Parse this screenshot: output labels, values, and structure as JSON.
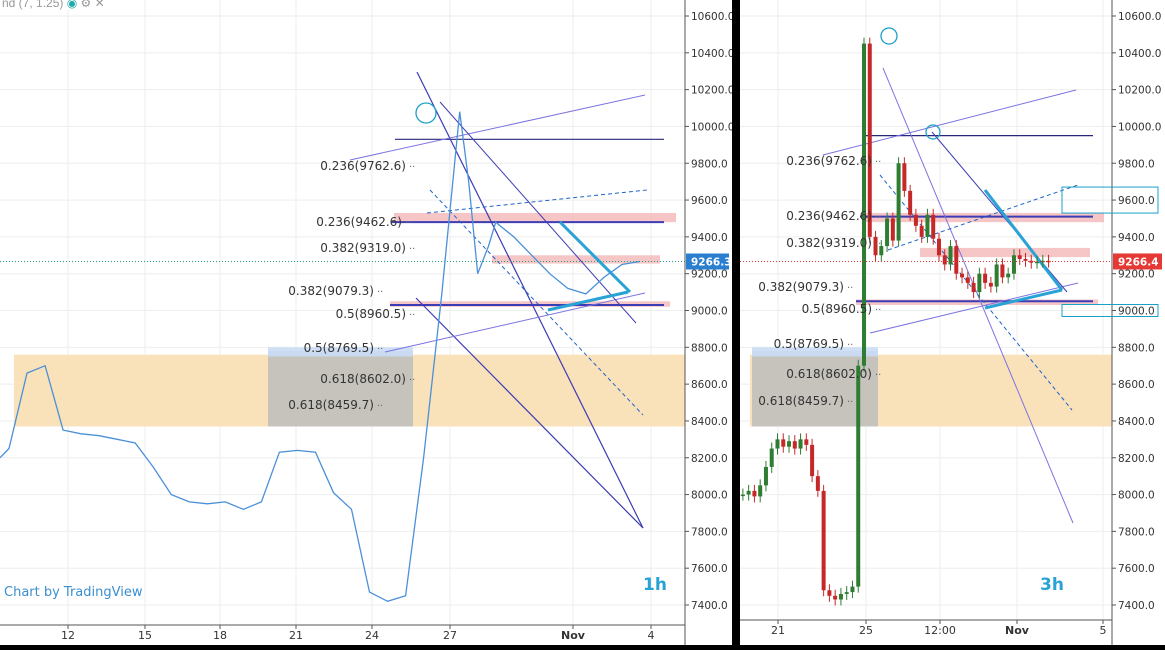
{
  "colors": {
    "line_series": "#4a90d9",
    "candle_up": "#2e7d32",
    "candle_down": "#c62828",
    "zone_orange": "#f9dfb6",
    "zone_pink": "#f4b6b8",
    "zone_gray": "#bdbdbd",
    "zone_blue": "#c9dcf5",
    "channel": "#3c3cb4",
    "channel_light": "#7b74e0",
    "dashed": "#1e64c8",
    "triangle": "#29a3d6",
    "price_badge_left": "#2a7fd0",
    "price_badge_right": "#e53935",
    "timeframe_label": "#29a3d6"
  },
  "legend": {
    "text": "nd (7, 1.25)",
    "icons": [
      "eye-icon",
      "gear-icon",
      "close-icon"
    ]
  },
  "watermark": "Chart by TradingView",
  "chart_data": [
    {
      "type": "line",
      "timeframe": "1h",
      "current_price": "9266.3",
      "ylim": [
        7350,
        10700
      ],
      "y_ticks": [
        "10600.0",
        "10400.0",
        "10200.0",
        "10000.0",
        "9800.0",
        "9600.0",
        "9400.0",
        "9200.0",
        "9000.0",
        "8800.0",
        "8600.0",
        "8400.0",
        "8200.0",
        "8000.0",
        "7800.0",
        "7600.0",
        "7400.0"
      ],
      "x_ticks": [
        "12",
        "15",
        "18",
        "21",
        "24",
        "27",
        "Nov",
        "4"
      ],
      "series": [
        {
          "x": [
            -0.5,
            0,
            1,
            2,
            3,
            4,
            5,
            6,
            7,
            8,
            9,
            10,
            11,
            12,
            13,
            14,
            15,
            16,
            17,
            18,
            19,
            20,
            21,
            22,
            23,
            24,
            25,
            25.5,
            26,
            26.6,
            27,
            28,
            29,
            30,
            31,
            32,
            33,
            34,
            35
          ],
          "values": [
            8200,
            8250,
            8660,
            8700,
            8350,
            8330,
            8320,
            8300,
            8280,
            8150,
            8000,
            7960,
            7950,
            7960,
            7920,
            7960,
            8230,
            8240,
            8230,
            8010,
            7920,
            7470,
            7420,
            7450,
            8200,
            9080,
            10080,
            9700,
            9200,
            9350,
            9480,
            9400,
            9300,
            9200,
            9120,
            9090,
            9180,
            9250,
            9266
          ]
        }
      ],
      "fib_labels": [
        "0.236(9762.6)",
        "0.236(9462.6)",
        "0.382(9319.0)",
        "0.382(9079.3)",
        "0.5(8960.5)",
        "0.5(8769.5)",
        "0.618(8602.0)",
        "0.618(8459.7)"
      ],
      "zones": [
        {
          "kind": "orange",
          "from": 8370,
          "to": 8760
        },
        {
          "kind": "pink",
          "from": 9480,
          "to": 9530
        },
        {
          "kind": "pink",
          "from": 9255,
          "to": 9300
        },
        {
          "kind": "pink",
          "from": 9020,
          "to": 9050
        }
      ],
      "levels": [
        9930,
        9480,
        9030
      ]
    },
    {
      "type": "candlestick",
      "timeframe": "3h",
      "current_price": "9266.4",
      "ylim": [
        7350,
        10700
      ],
      "y_ticks": [
        "10600.0",
        "10400.0",
        "10200.0",
        "10000.0",
        "9800.0",
        "9600.0",
        "9400.0",
        "9200.0",
        "9000.0",
        "8800.0",
        "8600.0",
        "8400.0",
        "8200.0",
        "8000.0",
        "7800.0",
        "7600.0",
        "7400.0"
      ],
      "x_ticks": [
        "21",
        "25",
        "12:00",
        "Nov",
        "5"
      ],
      "boxed_prices": [
        "9600.0",
        "9000.0"
      ],
      "series": [
        {
          "x": [
            0,
            1,
            2,
            3,
            4,
            5,
            6,
            7,
            8,
            9,
            10,
            11,
            12,
            13,
            14,
            15,
            16,
            17,
            18,
            19,
            20,
            21,
            22,
            23,
            24,
            25,
            26,
            27,
            28,
            29,
            30,
            31,
            32,
            33,
            34,
            35,
            36,
            37,
            38,
            39,
            40,
            41,
            42,
            43,
            44,
            45,
            46,
            47,
            48,
            49,
            50,
            51,
            52,
            53
          ],
          "values": [
            8000,
            8020,
            7990,
            8050,
            8150,
            8250,
            8300,
            8260,
            8290,
            8250,
            8300,
            8270,
            8100,
            8020,
            7480,
            7450,
            7430,
            7460,
            7470,
            7500,
            8700,
            10450,
            9400,
            9300,
            9350,
            9500,
            9380,
            9800,
            9650,
            9520,
            9460,
            9400,
            9520,
            9390,
            9300,
            9250,
            9350,
            9200,
            9180,
            9150,
            9100,
            9200,
            9150,
            9130,
            9250,
            9180,
            9200,
            9300,
            9280,
            9270,
            9260,
            9265,
            9270,
            9266
          ]
        }
      ],
      "fib_labels": [
        "0.236(9762.6)",
        "0.236(9462.6)",
        "0.382(9319.0)",
        "0.382(9079.3)",
        "0.5(8960.5)",
        "0.5(8769.5)",
        "0.618(8602.0)",
        "0.618(8459.7)"
      ],
      "zones": [
        {
          "kind": "orange",
          "from": 8370,
          "to": 8760
        },
        {
          "kind": "pink",
          "from": 9480,
          "to": 9530
        },
        {
          "kind": "pink",
          "from": 9290,
          "to": 9340
        },
        {
          "kind": "pink",
          "from": 9030,
          "to": 9060
        }
      ],
      "levels": [
        9950,
        9510,
        9050
      ]
    }
  ]
}
